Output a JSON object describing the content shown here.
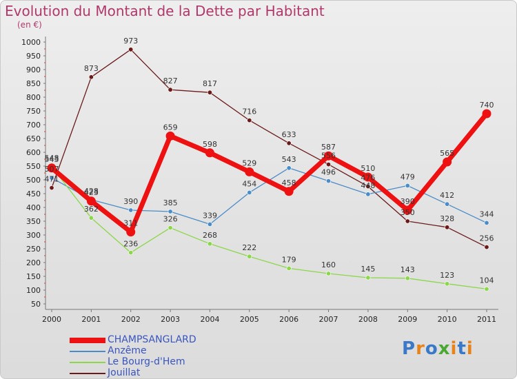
{
  "chart_data": {
    "type": "line",
    "title": "Evolution du Montant de la Dette par Habitant",
    "subtitle": "(en €)",
    "x": [
      "2000",
      "2001",
      "2002",
      "2003",
      "2004",
      "2005",
      "2006",
      "2007",
      "2008",
      "2009",
      "2010",
      "2011"
    ],
    "ylim": [
      50,
      1000
    ],
    "yticks": [
      50,
      100,
      150,
      200,
      250,
      300,
      350,
      400,
      450,
      500,
      550,
      600,
      650,
      700,
      750,
      800,
      850,
      900,
      950,
      1000
    ],
    "grid": false,
    "legend_position": "bottom-left",
    "series": [
      {
        "name": "Jouillat",
        "color": "#6b1a1a",
        "width": 1.3,
        "values": [
          471,
          873,
          973,
          827,
          817,
          716,
          633,
          556,
          476,
          350,
          328,
          256
        ],
        "labels": [
          "471",
          "873",
          "973",
          "827",
          "817",
          "716",
          "633",
          "556",
          "476",
          "350",
          "328",
          "256"
        ]
      },
      {
        "name": "Anzême",
        "color": "#4a8cc8",
        "width": 1.3,
        "values": [
          507,
          428,
          390,
          385,
          339,
          454,
          543,
          496,
          448,
          479,
          412,
          344
        ],
        "labels": [
          "507",
          "428",
          "390",
          "385",
          "339",
          "454",
          "543",
          "496",
          "448",
          "479",
          "412",
          "344"
        ]
      },
      {
        "name": "Le Bourg-d'Hem",
        "color": "#8cd64a",
        "width": 1.3,
        "values": [
          548,
          362,
          236,
          326,
          268,
          222,
          179,
          160,
          145,
          143,
          123,
          104
        ],
        "labels": [
          "548",
          "362",
          "236",
          "326",
          "268",
          "222",
          "179",
          "160",
          "145",
          "143",
          "123",
          "104"
        ]
      },
      {
        "name": "CHAMPSANGLARD",
        "color": "#ee1111",
        "width": 7,
        "values": [
          543,
          423,
          311,
          659,
          598,
          529,
          458,
          587,
          510,
          390,
          565,
          740
        ],
        "labels": [
          "543",
          "423",
          "311",
          "659",
          "598",
          "529",
          "458",
          "587",
          "510",
          "390",
          "565",
          "740"
        ]
      }
    ]
  },
  "legend": [
    {
      "label": "CHAMPSANGLARD",
      "color": "#ee1111",
      "thick": true
    },
    {
      "label": "Anzême",
      "color": "#4a8cc8",
      "thick": false
    },
    {
      "label": "Le Bourg-d'Hem",
      "color": "#8cd64a",
      "thick": false
    },
    {
      "label": "Jouillat",
      "color": "#6b1a1a",
      "thick": false
    }
  ],
  "logo": {
    "letters": [
      "P",
      "r",
      "o",
      "x",
      "i",
      "t",
      "i"
    ],
    "colors": [
      "#3a78c8",
      "#e8821a",
      "#3a78c8",
      "#4aa832",
      "#e8821a",
      "#3a78c8",
      "#e8821a"
    ]
  }
}
